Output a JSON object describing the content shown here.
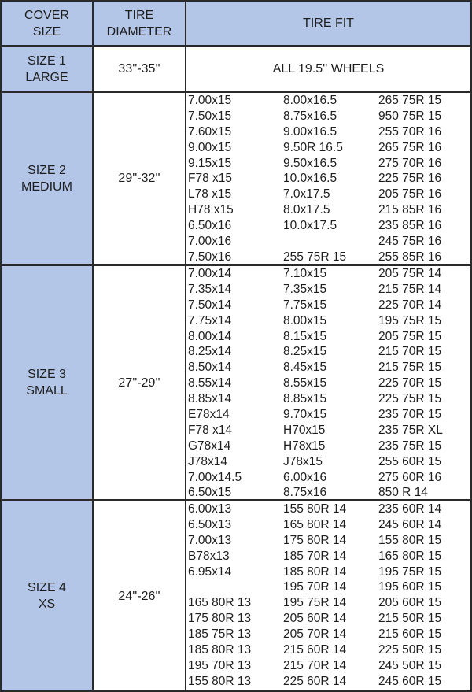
{
  "header": {
    "cover_size": "COVER\nSIZE",
    "cover_size_l1": "COVER",
    "cover_size_l2": "SIZE",
    "tire_diameter_l1": "TIRE",
    "tire_diameter_l2": "DIAMETER",
    "tire_fit": "TIRE FIT"
  },
  "colors": {
    "header_bg": "#b4c6e7",
    "border": "#2a2a2a"
  },
  "sections": [
    {
      "size_l1": "SIZE 1",
      "size_l2": "LARGE",
      "diameter": "33''-35''",
      "fit_text": "ALL 19.5'' WHEELS"
    },
    {
      "size_l1": "SIZE 2",
      "size_l2": "MEDIUM",
      "diameter": "29''-32''",
      "rows": [
        [
          "7.00x15",
          "8.00x16.5",
          "265 75R 15"
        ],
        [
          "7.50x15",
          "8.75x16.5",
          "950 75R 15"
        ],
        [
          "7.60x15",
          "9.00x16.5",
          "255 70R 16"
        ],
        [
          "9.00x15",
          "9.50R 16.5",
          "265 75R 16"
        ],
        [
          "9.15x15",
          "9.50x16.5",
          "275 70R 16"
        ],
        [
          "F78 x15",
          "10.0x16.5",
          "225 75R 16"
        ],
        [
          "L78 x15",
          "7.0x17.5",
          "205 75R 16"
        ],
        [
          "H78 x15",
          "8.0x17.5",
          "215 85R 16"
        ],
        [
          "6.50x16",
          "10.0x17.5",
          "235 85R 16"
        ],
        [
          "7.00x16",
          "",
          "245 75R 16"
        ],
        [
          "7.50x16",
          "255 75R 15",
          "255 85R 16"
        ]
      ]
    },
    {
      "size_l1": "SIZE 3",
      "size_l2": "SMALL",
      "diameter": "27''-29''",
      "rows": [
        [
          "7.00x14",
          "7.10x15",
          "205 75R 14"
        ],
        [
          "7.35x14",
          "7.35x15",
          "215 75R 14"
        ],
        [
          "7.50x14",
          "7.75x15",
          "225 70R 14"
        ],
        [
          "7.75x14",
          "8.00x15",
          "195 75R 15"
        ],
        [
          "8.00x14",
          "8.15x15",
          "205 75R 15"
        ],
        [
          "8.25x14",
          "8.25x15",
          "215 70R 15"
        ],
        [
          "8.50x14",
          "8.45x15",
          "215 75R 15"
        ],
        [
          "8.55x14",
          "8.55x15",
          "225 70R 15"
        ],
        [
          "8.85x14",
          "8.85x15",
          "225 75R 15"
        ],
        [
          "E78x14",
          "9.70x15",
          "235 70R 15"
        ],
        [
          "F78 x14",
          "H70x15",
          "235 75R XL"
        ],
        [
          "G78x14",
          "H78x15",
          "235 75R 15"
        ],
        [
          "J78x14",
          "J78x15",
          "255 60R 15"
        ],
        [
          "7.00x14.5",
          "6.00x16",
          "275 60R 16"
        ],
        [
          "6.50x15",
          "8.75x16",
          "850 R 14"
        ]
      ]
    },
    {
      "size_l1": "SIZE 4",
      "size_l2": "XS",
      "diameter": "24''-26''",
      "rows": [
        [
          "6.00x13",
          "155 80R 14",
          "235 60R 14"
        ],
        [
          "6.50x13",
          "165 80R 14",
          "245 60R 14"
        ],
        [
          "7.00x13",
          "175 80R 14",
          "155 80R 15"
        ],
        [
          "B78x13",
          "185 70R 14",
          "165 80R 15"
        ],
        [
          "6.95x14",
          "185 80R 14",
          "195 75R 15"
        ],
        [
          "",
          "195 70R 14",
          "195 60R 15"
        ],
        [
          "165 80R 13",
          "195 75R 14",
          "205 60R 15"
        ],
        [
          "175 80R 13",
          "205 60R 14",
          "215 50R 15"
        ],
        [
          "185 75R 13",
          "205 70R 14",
          "215 60R 15"
        ],
        [
          "185 80R 13",
          "215 60R 14",
          "225 50R 15"
        ],
        [
          "195 70R 13",
          "215 70R 14",
          "245 50R 15"
        ],
        [
          "155 80R 13",
          "225 60R 14",
          "245 60R 15"
        ]
      ]
    }
  ]
}
